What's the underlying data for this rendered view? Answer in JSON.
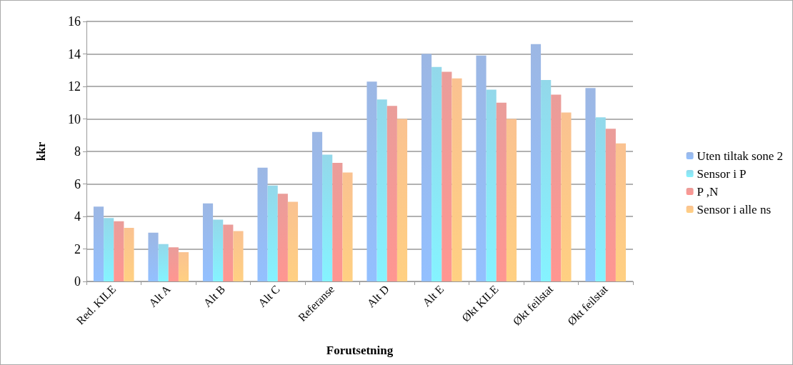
{
  "chart_data": {
    "type": "bar",
    "xlabel": "Forutsetning",
    "ylabel": "kkr",
    "categories": [
      "Red. KILE",
      "Alt A",
      "Alt B",
      "Alt C",
      "Referanse",
      "Alt D",
      "Alt E",
      "Økt KILE",
      "Økt feilstat",
      "Økt feilstat"
    ],
    "series": [
      {
        "name": "Uten tiltak sone 2",
        "color": "#7ba0dc",
        "values": [
          4.6,
          3.0,
          4.8,
          7.0,
          9.2,
          12.3,
          14.0,
          13.9,
          14.6,
          11.9
        ]
      },
      {
        "name": "Sensor i P",
        "color": "#6fcbe3",
        "values": [
          3.9,
          2.3,
          3.8,
          5.9,
          7.8,
          11.2,
          13.2,
          11.8,
          12.4,
          10.1
        ]
      },
      {
        "name": "P ,N",
        "color": "#e47d79",
        "values": [
          3.7,
          2.1,
          3.5,
          5.4,
          7.3,
          10.8,
          12.9,
          11.0,
          11.5,
          9.4
        ]
      },
      {
        "name": "Sensor i alle ns",
        "color": "#f9ae6d",
        "values": [
          3.3,
          1.8,
          3.1,
          4.9,
          6.7,
          10.0,
          12.5,
          10.0,
          10.4,
          8.5
        ]
      }
    ],
    "ylim": [
      0,
      16
    ],
    "yticks": [
      0,
      2,
      4,
      6,
      8,
      10,
      12,
      14,
      16
    ],
    "grid": "y",
    "legend": "right"
  }
}
